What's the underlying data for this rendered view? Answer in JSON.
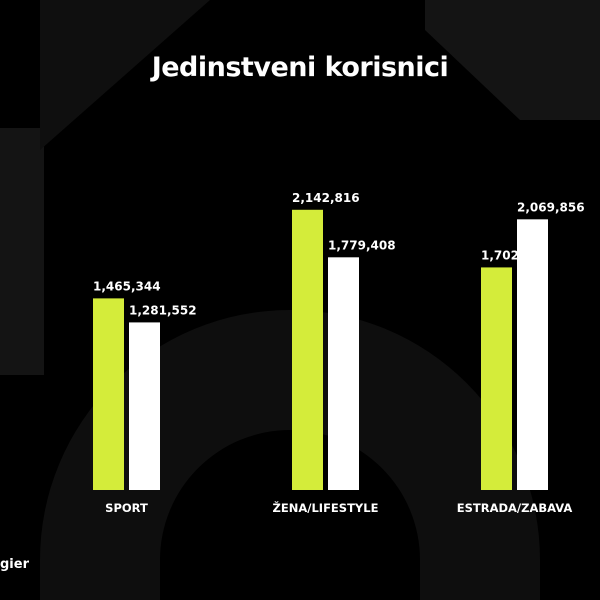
{
  "chart_data": {
    "type": "bar",
    "title": "Jedinstveni korisnici",
    "categories": [
      "SPORT",
      "ŽENA/LIFESTYLE",
      "ESTRADA/ZABAVA"
    ],
    "series": [
      {
        "values": [
          1465344,
          2142816,
          1702128
        ],
        "value_labels": [
          "1,465,344",
          "2,142,816",
          "1,702,128"
        ],
        "color": "#d4ec3a"
      },
      {
        "values": [
          1281552,
          1779408,
          2069856
        ],
        "value_labels": [
          "1,281,552",
          "1,779,408",
          "2,069,856"
        ],
        "color": "#ffffff"
      }
    ],
    "ylim": [
      0,
      2600000
    ],
    "grid": false
  },
  "footer": {
    "text": "gier"
  },
  "colors": {
    "background": "#000000",
    "decor": "#141414",
    "text": "#ffffff"
  }
}
